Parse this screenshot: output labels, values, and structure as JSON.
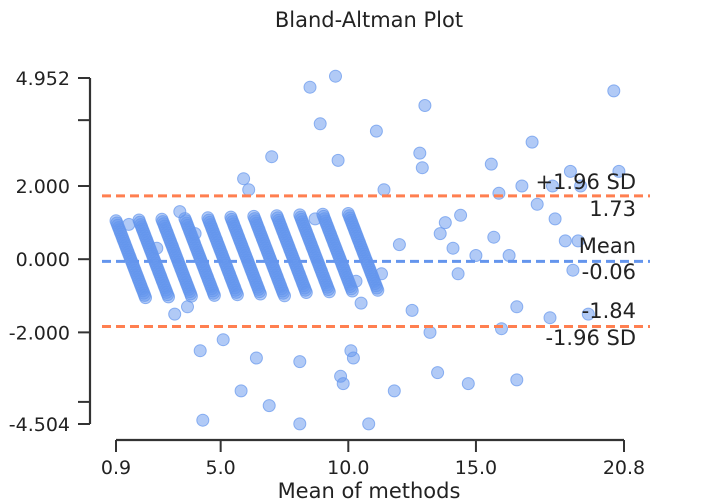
{
  "chart_data": {
    "type": "scatter",
    "title": "Bland-Altman Plot",
    "xlabel": "Mean of methods",
    "ylabel": "",
    "xlim": [
      0.9,
      20.8
    ],
    "ylim": [
      -4.504,
      4.952
    ],
    "xticks": [
      0.9,
      5.0,
      10.0,
      15.0,
      20.8
    ],
    "xtick_labels": [
      "0.9",
      "5.0",
      "10.0",
      "15.0",
      "20.8"
    ],
    "yticks": [
      4.952,
      2.0,
      0.0,
      -2.0,
      -4.504
    ],
    "ytick_labels": [
      "4.952",
      "2.000",
      "0.000",
      "-2.000",
      "-4.504"
    ],
    "y_minor_ticks": [
      3.8,
      -3.9
    ],
    "grid": false,
    "point_color": "#6495ED",
    "mean_line": {
      "value": -0.06,
      "label": "Mean",
      "value_label": "-0.06",
      "color": "#6495ED"
    },
    "upper_loa": {
      "value": 1.73,
      "label": "+1.96 SD",
      "value_label": "1.73",
      "color": "#FF7F50"
    },
    "lower_loa": {
      "value": -1.84,
      "label": "-1.96 SD",
      "value_label": "-1.84",
      "color": "#FF7F50"
    },
    "bands": {
      "count": 11,
      "start_means": [
        0.9,
        1.8,
        2.7,
        3.6,
        4.5,
        5.4,
        6.3,
        7.2,
        8.1,
        9.0,
        10.0
      ],
      "slope": -1.0,
      "half_width": 1.05,
      "note": "discrete diagonal clusters of points from integer-valued differences"
    },
    "outliers": [
      [
        1.4,
        0.95
      ],
      [
        2.5,
        0.3
      ],
      [
        3.4,
        1.3
      ],
      [
        4.0,
        0.7
      ],
      [
        3.7,
        -1.3
      ],
      [
        3.2,
        -1.5
      ],
      [
        4.2,
        -2.5
      ],
      [
        4.3,
        -4.4
      ],
      [
        5.1,
        -2.2
      ],
      [
        5.9,
        2.2
      ],
      [
        6.1,
        1.9
      ],
      [
        5.8,
        -3.6
      ],
      [
        6.4,
        -2.7
      ],
      [
        6.9,
        -4.0
      ],
      [
        7.0,
        2.8
      ],
      [
        7.5,
        -1.0
      ],
      [
        8.1,
        -2.8
      ],
      [
        8.1,
        -4.5
      ],
      [
        8.5,
        4.7
      ],
      [
        8.7,
        1.1
      ],
      [
        8.9,
        3.7
      ],
      [
        9.5,
        5.0
      ],
      [
        9.6,
        2.7
      ],
      [
        9.7,
        -3.2
      ],
      [
        9.8,
        -3.4
      ],
      [
        10.1,
        -2.5
      ],
      [
        10.2,
        -2.7
      ],
      [
        10.3,
        -0.6
      ],
      [
        10.5,
        -1.2
      ],
      [
        10.8,
        -4.5
      ],
      [
        11.1,
        3.5
      ],
      [
        11.3,
        -0.4
      ],
      [
        11.4,
        1.9
      ],
      [
        11.8,
        -3.6
      ],
      [
        12.0,
        0.4
      ],
      [
        12.5,
        -1.4
      ],
      [
        12.8,
        2.9
      ],
      [
        12.9,
        2.5
      ],
      [
        13.0,
        4.2
      ],
      [
        13.2,
        -2.0
      ],
      [
        13.5,
        -3.1
      ],
      [
        13.6,
        0.7
      ],
      [
        13.8,
        1.0
      ],
      [
        14.1,
        0.3
      ],
      [
        14.3,
        -0.4
      ],
      [
        14.4,
        1.2
      ],
      [
        14.7,
        -3.4
      ],
      [
        15.0,
        0.1
      ],
      [
        15.6,
        2.6
      ],
      [
        15.7,
        0.6
      ],
      [
        15.9,
        1.8
      ],
      [
        16.0,
        -1.9
      ],
      [
        16.3,
        0.1
      ],
      [
        16.6,
        -3.3
      ],
      [
        16.8,
        2.0
      ],
      [
        17.2,
        3.2
      ],
      [
        17.4,
        1.5
      ],
      [
        18.0,
        2.0
      ],
      [
        18.1,
        1.1
      ],
      [
        18.5,
        0.5
      ],
      [
        18.7,
        2.4
      ],
      [
        18.8,
        -0.3
      ],
      [
        19.1,
        2.0
      ],
      [
        19.4,
        -1.5
      ],
      [
        20.4,
        4.6
      ],
      [
        20.6,
        2.4
      ],
      [
        16.6,
        -1.3
      ],
      [
        17.9,
        -1.6
      ],
      [
        19.0,
        0.5
      ]
    ]
  }
}
